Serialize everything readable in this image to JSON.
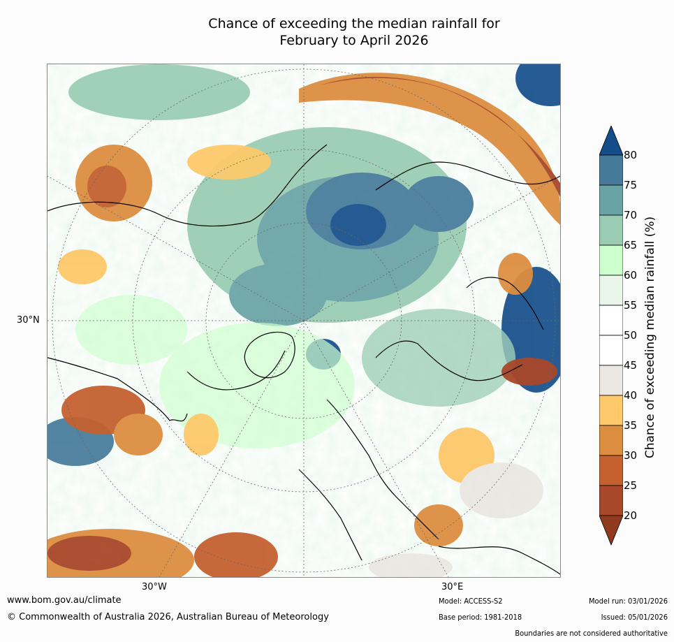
{
  "title": {
    "line1": "Chance of exceeding the median rainfall for",
    "line2": "February to April 2026"
  },
  "map": {
    "projection": "north polar stereographic",
    "lat_label": "30°N",
    "lon_labels": [
      "30°W",
      "30°E"
    ]
  },
  "colorbar": {
    "label": "Chance of exceeding median rainfall (%)",
    "ticks": [
      "20",
      "25",
      "30",
      "35",
      "40",
      "45",
      "50",
      "55",
      "60",
      "65",
      "70",
      "75",
      "80"
    ],
    "colors": [
      "#8f3a1e",
      "#a9472a",
      "#c4612f",
      "#dc8e40",
      "#fdc96a",
      "#ebe8e3",
      "#ffffff",
      "#ffffff",
      "#e9f6e9",
      "#ccffcc",
      "#99ccb3",
      "#6aa3a6",
      "#457a9a",
      "#144e8a"
    ],
    "extend": "both"
  },
  "footer": {
    "website": "www.bom.gov.au/climate",
    "copyright": "© Commonwealth of Australia 2026, Australian Bureau of Meteorology",
    "model": "Model: ACCESS-S2",
    "base_period": "Base period: 1981-2018",
    "model_run": "Model run: 03/01/2026",
    "issued": "Issued: 05/01/2026",
    "disclaimer": "Boundaries are not considered authoritative"
  }
}
